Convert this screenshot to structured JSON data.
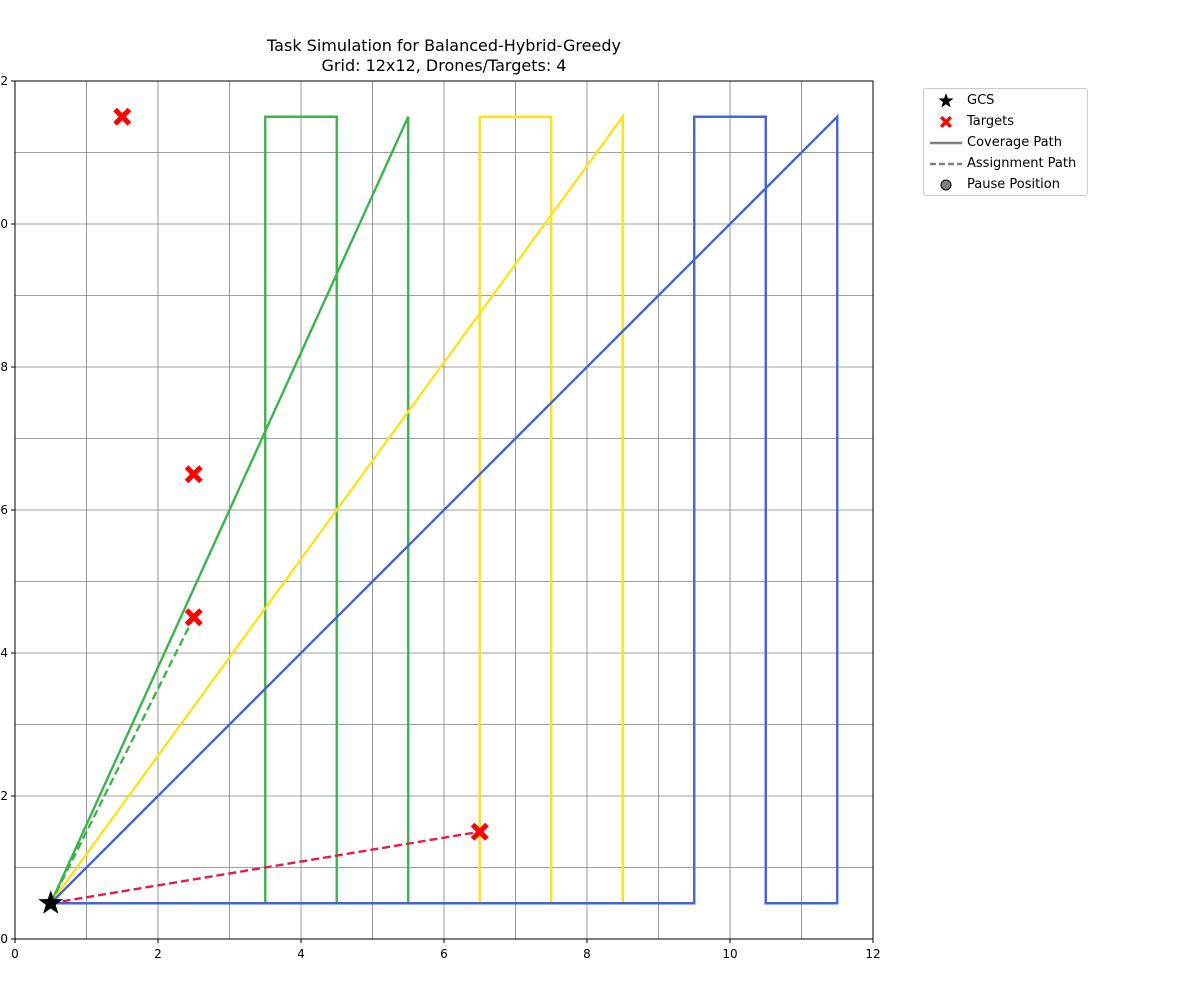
{
  "chart_data": {
    "type": "line",
    "title": "Task Simulation for Balanced-Hybrid-Greedy",
    "subtitle": "Grid: 12x12, Drones/Targets: 4",
    "xlabel": "",
    "ylabel": "",
    "xlim": [
      0,
      12
    ],
    "ylim": [
      0,
      12
    ],
    "x_ticks": [
      0,
      2,
      4,
      6,
      8,
      10,
      12
    ],
    "y_ticks": [
      0,
      2,
      4,
      6,
      8,
      10,
      12
    ],
    "grid": true,
    "grid_step": 1,
    "legend_position": "outside top-right",
    "gcs": {
      "x": 0.5,
      "y": 0.5
    },
    "targets": [
      {
        "x": 1.5,
        "y": 11.5
      },
      {
        "x": 2.5,
        "y": 6.5
      },
      {
        "x": 2.5,
        "y": 4.5
      },
      {
        "x": 6.5,
        "y": 1.5
      }
    ],
    "coverage_paths": [
      {
        "color": "#3cb44b",
        "points": [
          [
            0.5,
            0.5
          ],
          [
            3.5,
            0.5
          ],
          [
            3.5,
            11.5
          ],
          [
            4.5,
            11.5
          ],
          [
            4.5,
            0.5
          ],
          [
            5.5,
            0.5
          ],
          [
            5.5,
            11.5
          ],
          [
            0.5,
            0.5
          ]
        ]
      },
      {
        "color": "#ffe119",
        "points": [
          [
            0.5,
            0.5
          ],
          [
            6.5,
            0.5
          ],
          [
            6.5,
            11.5
          ],
          [
            7.5,
            11.5
          ],
          [
            7.5,
            0.5
          ],
          [
            8.5,
            0.5
          ],
          [
            8.5,
            11.5
          ],
          [
            0.5,
            0.5
          ]
        ]
      },
      {
        "color": "#4363d8",
        "points": [
          [
            0.5,
            0.5
          ],
          [
            9.5,
            0.5
          ],
          [
            9.5,
            11.5
          ],
          [
            10.5,
            11.5
          ],
          [
            10.5,
            0.5
          ],
          [
            11.5,
            0.5
          ],
          [
            11.5,
            11.5
          ],
          [
            0.5,
            0.5
          ]
        ]
      }
    ],
    "assignment_paths": [
      {
        "color": "#3cb44b",
        "points": [
          [
            0.5,
            0.5
          ],
          [
            2.5,
            4.5
          ]
        ]
      },
      {
        "color": "#e6194b",
        "points": [
          [
            0.5,
            0.5
          ],
          [
            6.5,
            1.5
          ]
        ]
      }
    ],
    "legend": [
      {
        "label": "GCS",
        "marker": "star",
        "color": "#000000"
      },
      {
        "label": "Targets",
        "marker": "x",
        "color": "#ff0000"
      },
      {
        "label": "Coverage Path",
        "marker": "solid-line",
        "color": "#808080"
      },
      {
        "label": "Assignment Path",
        "marker": "dashed-line",
        "color": "#808080"
      },
      {
        "label": "Pause Position",
        "marker": "circle",
        "color": "#808080"
      }
    ]
  }
}
